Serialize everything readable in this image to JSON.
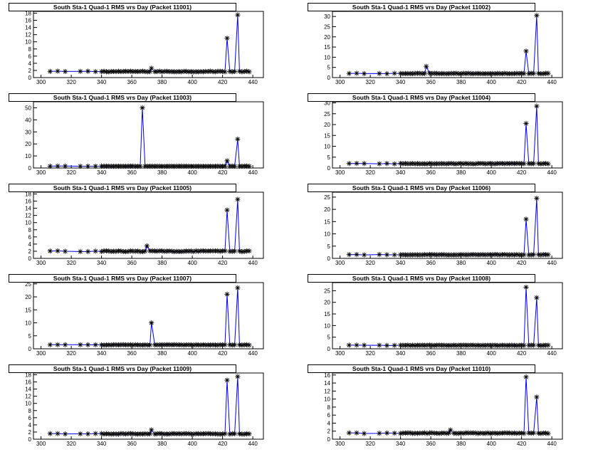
{
  "figure": {
    "background": "#ffffff",
    "series_color": "#0000ff",
    "marker_color": "#000000",
    "marker": "asterisk"
  },
  "chart_data": [
    {
      "type": "line",
      "title": "South Sta-1 Quad-1 RMS vrs Day (Packet 11001)",
      "xlim": [
        295,
        447
      ],
      "ylim": [
        0,
        18.5
      ],
      "xticks": [
        300,
        320,
        340,
        360,
        380,
        400,
        420,
        440
      ],
      "yticks": [
        0,
        2,
        4,
        6,
        8,
        10,
        12,
        14,
        16,
        18
      ],
      "baseline": 1.7,
      "spikes": [
        [
          373,
          2.6
        ],
        [
          423,
          11
        ],
        [
          430,
          17.5
        ]
      ]
    },
    {
      "type": "line",
      "title": "South Sta-1 Quad-1 RMS vrs Day (Packet 11002)",
      "xlim": [
        295,
        447
      ],
      "ylim": [
        0,
        32.5
      ],
      "xticks": [
        300,
        320,
        340,
        360,
        380,
        400,
        420,
        440
      ],
      "yticks": [
        0,
        5,
        10,
        15,
        20,
        25,
        30
      ],
      "baseline": 2.0,
      "spikes": [
        [
          357,
          5.5
        ],
        [
          423,
          13
        ],
        [
          430,
          30.5
        ]
      ]
    },
    {
      "type": "line",
      "title": "South Sta-1 Quad-1 RMS vrs Day (Packet 11003)",
      "xlim": [
        295,
        447
      ],
      "ylim": [
        0,
        55
      ],
      "xticks": [
        300,
        320,
        340,
        360,
        380,
        400,
        420,
        440
      ],
      "yticks": [
        0,
        10,
        20,
        30,
        40,
        50
      ],
      "baseline": 1.5,
      "spikes": [
        [
          367,
          50
        ],
        [
          423,
          6
        ],
        [
          430,
          24
        ]
      ]
    },
    {
      "type": "line",
      "title": "South Sta-1 Quad-1 RMS vrs Day (Packet 11004)",
      "xlim": [
        295,
        447
      ],
      "ylim": [
        0,
        30.5
      ],
      "xticks": [
        300,
        320,
        340,
        360,
        380,
        400,
        420,
        440
      ],
      "yticks": [
        0,
        5,
        10,
        15,
        20,
        25,
        30
      ],
      "baseline": 2.0,
      "spikes": [
        [
          423,
          20.5
        ],
        [
          430,
          28.5
        ]
      ]
    },
    {
      "type": "line",
      "title": "South Sta-1 Quad-1 RMS vrs Day (Packet 11005)",
      "xlim": [
        295,
        447
      ],
      "ylim": [
        0,
        18.5
      ],
      "xticks": [
        300,
        320,
        340,
        360,
        380,
        400,
        420,
        440
      ],
      "yticks": [
        0,
        2,
        4,
        6,
        8,
        10,
        12,
        14,
        16,
        18
      ],
      "baseline": 2.0,
      "spikes": [
        [
          370,
          3.5
        ],
        [
          423,
          13.5
        ],
        [
          430,
          16.5
        ]
      ]
    },
    {
      "type": "line",
      "title": "South Sta-1 Quad-1 RMS vrs Day (Packet 11006)",
      "xlim": [
        295,
        447
      ],
      "ylim": [
        0,
        27
      ],
      "xticks": [
        300,
        320,
        340,
        360,
        380,
        400,
        420,
        440
      ],
      "yticks": [
        0,
        5,
        10,
        15,
        20,
        25
      ],
      "baseline": 1.5,
      "spikes": [
        [
          423,
          16
        ],
        [
          430,
          24.5
        ]
      ]
    },
    {
      "type": "line",
      "title": "South Sta-1 Quad-1 RMS vrs Day (Packet 11007)",
      "xlim": [
        295,
        447
      ],
      "ylim": [
        0,
        25.5
      ],
      "xticks": [
        300,
        320,
        340,
        360,
        380,
        400,
        420,
        440
      ],
      "yticks": [
        0,
        5,
        10,
        15,
        20,
        25
      ],
      "baseline": 1.5,
      "spikes": [
        [
          373,
          10
        ],
        [
          423,
          21
        ],
        [
          430,
          23.5
        ]
      ]
    },
    {
      "type": "line",
      "title": "South Sta-1 Quad-1 RMS vrs Day (Packet 11008)",
      "xlim": [
        295,
        447
      ],
      "ylim": [
        0,
        28.5
      ],
      "xticks": [
        300,
        320,
        340,
        360,
        380,
        400,
        420,
        440
      ],
      "yticks": [
        0,
        5,
        10,
        15,
        20,
        25
      ],
      "baseline": 1.5,
      "spikes": [
        [
          423,
          26.5
        ],
        [
          430,
          22
        ]
      ]
    },
    {
      "type": "line",
      "title": "South Sta-1 Quad-1 RMS vrs Day (Packet 11009)",
      "xlim": [
        295,
        447
      ],
      "ylim": [
        0,
        18.5
      ],
      "xticks": [
        300,
        320,
        340,
        360,
        380,
        400,
        420,
        440
      ],
      "yticks": [
        0,
        2,
        4,
        6,
        8,
        10,
        12,
        14,
        16,
        18
      ],
      "baseline": 1.5,
      "spikes": [
        [
          373,
          2.6
        ],
        [
          423,
          16.5
        ],
        [
          430,
          17.5
        ]
      ]
    },
    {
      "type": "line",
      "title": "South Sta-1 Quad-1 RMS vrs Day (Packet 11010)",
      "xlim": [
        295,
        447
      ],
      "ylim": [
        0,
        16.5
      ],
      "xticks": [
        300,
        320,
        340,
        360,
        380,
        400,
        420,
        440
      ],
      "yticks": [
        0,
        2,
        4,
        6,
        8,
        10,
        12,
        14,
        16
      ],
      "baseline": 1.5,
      "spikes": [
        [
          373,
          2.3
        ],
        [
          423,
          15.5
        ],
        [
          430,
          10.5
        ]
      ]
    }
  ]
}
